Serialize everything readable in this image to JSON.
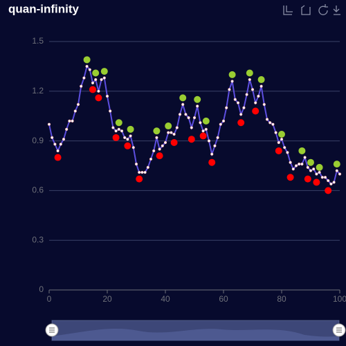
{
  "chart_data": {
    "type": "line",
    "title": "quan-infinity",
    "xlim": [
      0,
      100
    ],
    "xticks": [
      0,
      20,
      40,
      60,
      80,
      100
    ],
    "ylim": [
      0,
      1.5
    ],
    "yticks": [
      0,
      0.3,
      0.6,
      0.9,
      1.2,
      1.5
    ],
    "grid": true,
    "series": [
      {
        "type": "line",
        "color": "#5d4fe0",
        "x": [
          0,
          1,
          2,
          3,
          4,
          5,
          6,
          7,
          8,
          9,
          10,
          11,
          12,
          13,
          14,
          15,
          16,
          17,
          18,
          19,
          20,
          21,
          22,
          23,
          24,
          25,
          26,
          27,
          28,
          29,
          30,
          31,
          32,
          33,
          34,
          35,
          36,
          37,
          38,
          39,
          40,
          41,
          42,
          43,
          44,
          45,
          46,
          47,
          48,
          49,
          50,
          51,
          52,
          53,
          54,
          55,
          56,
          57,
          58,
          59,
          60,
          61,
          62,
          63,
          64,
          65,
          66,
          67,
          68,
          69,
          70,
          71,
          72,
          73,
          74,
          75,
          76,
          77,
          78,
          79,
          80,
          81,
          82,
          83,
          84,
          85,
          86,
          87,
          88,
          89,
          90,
          91,
          92,
          93,
          94,
          95,
          96,
          97,
          98,
          99,
          100
        ],
        "values": [
          1.0,
          0.92,
          0.88,
          0.84,
          0.88,
          0.91,
          0.97,
          1.02,
          1.02,
          1.08,
          1.12,
          1.23,
          1.28,
          1.35,
          1.33,
          1.25,
          1.27,
          1.2,
          1.27,
          1.28,
          1.17,
          1.08,
          0.98,
          0.96,
          0.97,
          0.96,
          0.92,
          0.91,
          0.93,
          0.86,
          0.76,
          0.71,
          0.71,
          0.71,
          0.74,
          0.79,
          0.84,
          0.92,
          0.85,
          0.87,
          0.89,
          0.95,
          0.95,
          0.94,
          0.98,
          1.06,
          1.12,
          1.06,
          1.04,
          0.98,
          1.04,
          1.11,
          1.01,
          0.96,
          0.97,
          0.9,
          0.82,
          0.87,
          0.92,
          1.0,
          1.02,
          1.1,
          1.21,
          1.26,
          1.15,
          1.13,
          1.06,
          1.1,
          1.18,
          1.27,
          1.21,
          1.13,
          1.17,
          1.23,
          1.12,
          1.03,
          1.01,
          1.0,
          0.95,
          0.89,
          0.91,
          0.86,
          0.83,
          0.77,
          0.73,
          0.75,
          0.76,
          0.76,
          0.8,
          0.74,
          0.72,
          0.73,
          0.7,
          0.71,
          0.68,
          0.68,
          0.66,
          0.64,
          0.65,
          0.72,
          0.7
        ]
      },
      {
        "type": "scatter",
        "color": "#9acd32",
        "x": [
          13,
          16,
          19,
          24,
          28,
          37,
          41,
          46,
          51,
          54,
          63,
          69,
          73,
          80,
          87,
          90,
          93,
          99
        ],
        "values": [
          1.39,
          1.31,
          1.32,
          1.01,
          0.97,
          0.96,
          0.99,
          1.16,
          1.15,
          1.02,
          1.3,
          1.31,
          1.27,
          0.94,
          0.84,
          0.77,
          0.74,
          0.76
        ]
      },
      {
        "type": "scatter",
        "color": "#ff0000",
        "x": [
          3,
          15,
          17,
          23,
          27,
          31,
          38,
          43,
          49,
          53,
          56,
          66,
          71,
          79,
          83,
          89,
          92,
          96
        ],
        "values": [
          0.8,
          1.21,
          1.16,
          0.92,
          0.87,
          0.67,
          0.81,
          0.89,
          0.91,
          0.93,
          0.77,
          1.01,
          1.08,
          0.84,
          0.68,
          0.67,
          0.65,
          0.6
        ]
      }
    ]
  }
}
